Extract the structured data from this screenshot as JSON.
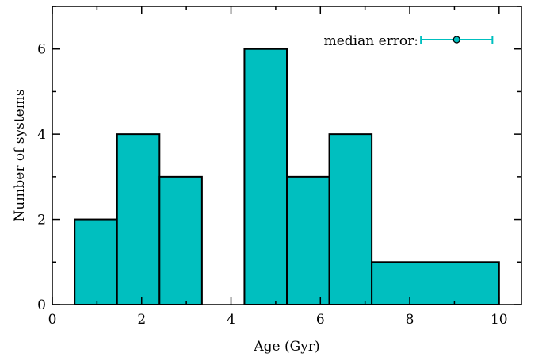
{
  "chart_data": {
    "type": "bar",
    "bins": [
      {
        "x0": 0.5,
        "x1": 1.45,
        "value": 2
      },
      {
        "x0": 1.45,
        "x1": 2.4,
        "value": 4
      },
      {
        "x0": 2.4,
        "x1": 3.35,
        "value": 3
      },
      {
        "x0": 3.35,
        "x1": 4.3,
        "value": 0
      },
      {
        "x0": 4.3,
        "x1": 5.25,
        "value": 6
      },
      {
        "x0": 5.25,
        "x1": 6.2,
        "value": 3
      },
      {
        "x0": 6.2,
        "x1": 7.15,
        "value": 4
      },
      {
        "x0": 7.15,
        "x1": 10.0,
        "value": 1
      }
    ],
    "title": "",
    "xlabel": "Age (Gyr)",
    "ylabel": "Number of systems",
    "xlim": [
      0,
      10.5
    ],
    "ylim": [
      0,
      7
    ],
    "x_ticks": [
      "0",
      "2",
      "4",
      "6",
      "8",
      "10"
    ],
    "y_ticks": [
      "0",
      "2",
      "4",
      "6"
    ],
    "fill_color": "#00bfbf",
    "edge_color": "#000000",
    "grid": false,
    "legend": {
      "label": "median error:",
      "position": "top-right",
      "errorbar": {
        "center": 9.05,
        "low": 8.25,
        "high": 9.85,
        "y": 6.2
      },
      "color": "#00bfbf"
    }
  }
}
